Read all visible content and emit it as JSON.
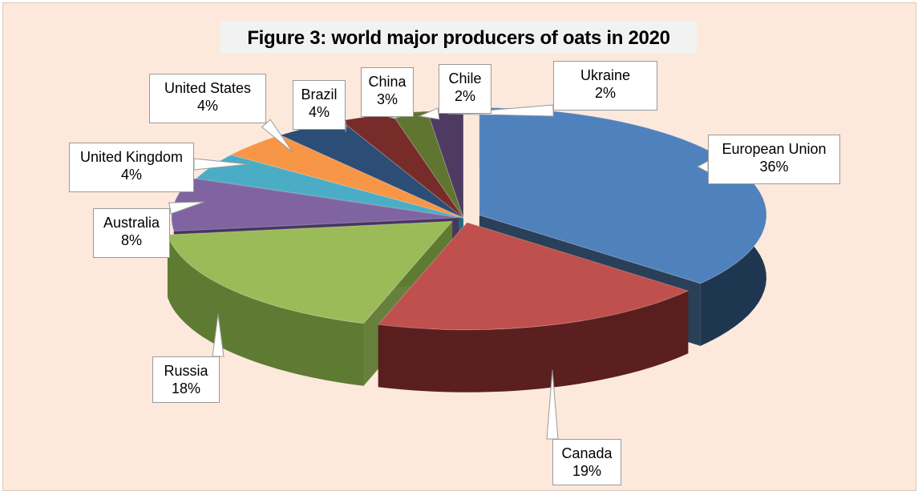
{
  "chart_data": {
    "type": "pie",
    "title": "Figure 3: world major producers of oats in 2020",
    "unit": "%",
    "slices": [
      {
        "label": "European Union",
        "value": 36,
        "display": "36%",
        "color": "#4f81bd",
        "side": "#1f3650"
      },
      {
        "label": "Canada",
        "value": 19,
        "display": "19%",
        "color": "#c0504d",
        "side": "#5a1f1e"
      },
      {
        "label": "Russia",
        "value": 18,
        "display": "18%",
        "color": "#9bbb59",
        "side": "#5f7a32"
      },
      {
        "label": "Australia",
        "value": 8,
        "display": "8%",
        "color": "#8064a2",
        "side": "#48365f"
      },
      {
        "label": "United Kingdom",
        "value": 4,
        "display": "4%",
        "color": "#4bacc6",
        "side": "#236b7e"
      },
      {
        "label": "United States",
        "value": 4,
        "display": "4%",
        "color": "#f79646",
        "side": "#9c5317"
      },
      {
        "label": "Brazil",
        "value": 4,
        "display": "4%",
        "color": "#2c4d75",
        "side": "#15263a"
      },
      {
        "label": "China",
        "value": 3,
        "display": "3%",
        "color": "#772c2a",
        "side": "#3e1514"
      },
      {
        "label": "Chile",
        "value": 2,
        "display": "2%",
        "color": "#5f7530",
        "side": "#344119"
      },
      {
        "label": "Ukraine",
        "value": 2,
        "display": "2%",
        "color": "#4d3b62",
        "side": "#271d33"
      }
    ],
    "legend": "none",
    "style": "3d-exploded-pie"
  }
}
